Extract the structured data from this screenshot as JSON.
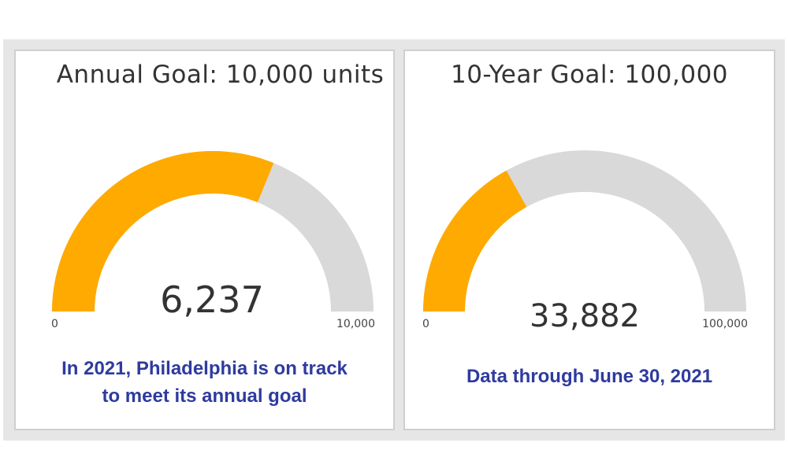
{
  "chart_data": [
    {
      "type": "gauge",
      "title": "Annual Goal: 10,000 units",
      "value": 6237,
      "value_label": "6,237",
      "min": 0,
      "max": 10000,
      "min_label": "0",
      "max_label": "10,000",
      "fill_color": "#FFAA00",
      "track_color": "#D9D9D9",
      "note_lines": [
        "In 2021, Philadelphia is on track",
        "to meet its annual goal"
      ]
    },
    {
      "type": "gauge",
      "title": "10-Year Goal: 100,000",
      "value": 33882,
      "value_label": "33,882",
      "min": 0,
      "max": 100000,
      "min_label": "0",
      "max_label": "100,000",
      "fill_color": "#FFAA00",
      "track_color": "#D9D9D9",
      "note_lines": [
        "Data through June 30, 2021"
      ]
    }
  ]
}
